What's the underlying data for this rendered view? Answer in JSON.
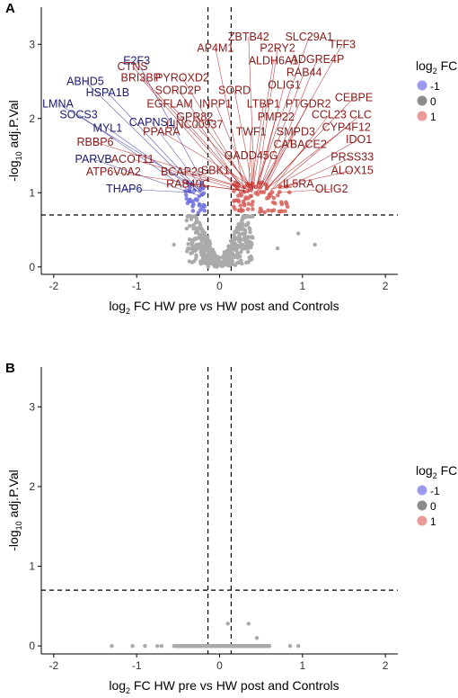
{
  "chart_data": [
    {
      "panel_label": "A",
      "type": "scatter",
      "xlabel_main": "log",
      "xlabel_sub": "2",
      "xlabel_rest": " FC HW pre vs HW post and Controls",
      "ylabel_pre": "-log",
      "ylabel_sub": "10",
      "ylabel_rest": " adj.P.Val",
      "xlim": [
        -2.15,
        2.15
      ],
      "ylim": [
        -0.1,
        3.5
      ],
      "x_ticks": [
        -2,
        -1,
        0,
        1,
        2
      ],
      "x_tick_labels": [
        "-2",
        "-1",
        "0",
        "1",
        "2"
      ],
      "y_ticks": [
        0,
        1,
        2,
        3
      ],
      "y_tick_labels": [
        "0",
        "1",
        "2",
        "3"
      ],
      "vlines": [
        -0.14,
        0.14
      ],
      "hline": 0.7,
      "legend": {
        "title_main": "log",
        "title_sub": "2",
        "title_rest": " FC",
        "items": [
          {
            "label": "-1",
            "color": "#8f8ff0"
          },
          {
            "label": "0",
            "color": "#808080"
          },
          {
            "label": "1",
            "color": "#e8908c"
          }
        ]
      },
      "colors": {
        "down": "#2d2d9a",
        "up": "#b01818",
        "down_label": "#1a1a6e",
        "up_label": "#8b1a1a",
        "neutral": "#aaaaaa",
        "down_point": "#6e6ee0",
        "up_point": "#d8605a"
      },
      "labels_down": [
        {
          "text": "E2F3",
          "lx": -1.0,
          "ly": 2.78,
          "px": -0.18,
          "py": 1.1
        },
        {
          "text": "ABHD5",
          "lx": -1.62,
          "ly": 2.5,
          "px": -0.2,
          "py": 0.95
        },
        {
          "text": "HSPA1B",
          "lx": -1.35,
          "ly": 2.35,
          "px": -0.22,
          "py": 1.0
        },
        {
          "text": "LMNA",
          "lx": -1.95,
          "ly": 2.2,
          "px": -0.25,
          "py": 1.05
        },
        {
          "text": "SOCS3",
          "lx": -1.7,
          "ly": 2.05,
          "px": -0.3,
          "py": 0.98
        },
        {
          "text": "MYL1",
          "lx": -1.35,
          "ly": 1.87,
          "px": -0.27,
          "py": 1.02
        },
        {
          "text": "CAPNS1",
          "lx": -0.82,
          "ly": 1.95,
          "px": -0.2,
          "py": 1.05
        },
        {
          "text": "PARVB",
          "lx": -1.52,
          "ly": 1.45,
          "px": -0.22,
          "py": 0.95
        },
        {
          "text": "THAP6",
          "lx": -1.15,
          "ly": 1.05,
          "px": -0.3,
          "py": 1.0
        }
      ],
      "labels_up": [
        {
          "text": "CTNS",
          "lx": -1.05,
          "ly": 2.7,
          "px": 0.3,
          "py": 1.05
        },
        {
          "text": "BRI3BP",
          "lx": -0.95,
          "ly": 2.55,
          "px": 0.25,
          "py": 1.0
        },
        {
          "text": "PYROXD2",
          "lx": -0.45,
          "ly": 2.55,
          "px": 0.35,
          "py": 1.05
        },
        {
          "text": "SORD2P",
          "lx": -0.5,
          "ly": 2.38,
          "px": 0.35,
          "py": 1.1
        },
        {
          "text": "SORD",
          "lx": 0.18,
          "ly": 2.38,
          "px": 0.4,
          "py": 1.05
        },
        {
          "text": "EGFLAM",
          "lx": -0.6,
          "ly": 2.2,
          "px": 0.3,
          "py": 1.08
        },
        {
          "text": "INPP1",
          "lx": -0.05,
          "ly": 2.2,
          "px": 0.38,
          "py": 1.02
        },
        {
          "text": "GPR82",
          "lx": -0.3,
          "ly": 2.02,
          "px": 0.3,
          "py": 1.0
        },
        {
          "text": "PPARA",
          "lx": -0.7,
          "ly": 1.82,
          "px": 0.45,
          "py": 1.05
        },
        {
          "text": "RBBP6",
          "lx": -1.5,
          "ly": 1.68,
          "px": 0.25,
          "py": 1.08
        },
        {
          "text": "ACOT11",
          "lx": -1.05,
          "ly": 1.45,
          "px": 0.35,
          "py": 1.0
        },
        {
          "text": "ATP6V0A2",
          "lx": -1.28,
          "ly": 1.28,
          "px": 0.3,
          "py": 1.02
        },
        {
          "text": "BCAP29",
          "lx": -0.45,
          "ly": 1.28,
          "px": 0.33,
          "py": 1.05
        },
        {
          "text": "SBK1",
          "lx": -0.05,
          "ly": 1.3,
          "px": 0.4,
          "py": 1.0
        },
        {
          "text": "RAB40C",
          "lx": -0.38,
          "ly": 1.12,
          "px": 0.3,
          "py": 1.03
        },
        {
          "text": "LINC00937",
          "lx": -0.3,
          "ly": 1.92,
          "px": 0.4,
          "py": 1.08
        },
        {
          "text": "ZBTB42",
          "lx": 0.35,
          "ly": 3.1,
          "px": 0.42,
          "py": 1.05
        },
        {
          "text": "SLC29A1",
          "lx": 1.08,
          "ly": 3.1,
          "px": 0.45,
          "py": 1.1
        },
        {
          "text": "TFF3",
          "lx": 1.48,
          "ly": 3.0,
          "px": 0.5,
          "py": 1.05
        },
        {
          "text": "AP4M1",
          "lx": -0.05,
          "ly": 2.95,
          "px": 0.3,
          "py": 1.0
        },
        {
          "text": "P2RY2",
          "lx": 0.7,
          "ly": 2.95,
          "px": 0.45,
          "py": 1.05
        },
        {
          "text": "ADGRE4P",
          "lx": 1.18,
          "ly": 2.8,
          "px": 0.55,
          "py": 1.08
        },
        {
          "text": "ALDH6A1",
          "lx": 0.65,
          "ly": 2.78,
          "px": 0.4,
          "py": 1.03
        },
        {
          "text": "RAB44",
          "lx": 1.02,
          "ly": 2.62,
          "px": 0.5,
          "py": 1.1
        },
        {
          "text": "OLIG1",
          "lx": 0.78,
          "ly": 2.45,
          "px": 0.45,
          "py": 1.0
        },
        {
          "text": "LTBP1",
          "lx": 0.53,
          "ly": 2.2,
          "px": 0.38,
          "py": 1.05
        },
        {
          "text": "PTGDR2",
          "lx": 1.07,
          "ly": 2.2,
          "px": 0.55,
          "py": 1.05
        },
        {
          "text": "CEBPE",
          "lx": 1.62,
          "ly": 2.28,
          "px": 0.6,
          "py": 1.1
        },
        {
          "text": "PMP22",
          "lx": 0.68,
          "ly": 2.02,
          "px": 0.45,
          "py": 1.08
        },
        {
          "text": "CCL23",
          "lx": 1.32,
          "ly": 2.05,
          "px": 0.6,
          "py": 1.0
        },
        {
          "text": "CLC",
          "lx": 1.7,
          "ly": 2.05,
          "px": 0.65,
          "py": 1.05
        },
        {
          "text": "CYP4F12",
          "lx": 1.53,
          "ly": 1.88,
          "px": 0.6,
          "py": 1.08
        },
        {
          "text": "TWF1",
          "lx": 0.38,
          "ly": 1.82,
          "px": 0.35,
          "py": 1.02
        },
        {
          "text": "SMPD3",
          "lx": 0.92,
          "ly": 1.82,
          "px": 0.5,
          "py": 1.05
        },
        {
          "text": "IDO1",
          "lx": 1.68,
          "ly": 1.72,
          "px": 0.7,
          "py": 1.1
        },
        {
          "text": "CAT",
          "lx": 0.78,
          "ly": 1.65,
          "px": 0.45,
          "py": 1.0
        },
        {
          "text": "BACE2",
          "lx": 1.07,
          "ly": 1.65,
          "px": 0.55,
          "py": 1.03
        },
        {
          "text": "GADD45G",
          "lx": 0.38,
          "ly": 1.5,
          "px": 0.4,
          "py": 1.05
        },
        {
          "text": "PRSS33",
          "lx": 1.6,
          "ly": 1.48,
          "px": 0.75,
          "py": 1.05
        },
        {
          "text": "ALOX15",
          "lx": 1.6,
          "ly": 1.3,
          "px": 0.8,
          "py": 1.1
        },
        {
          "text": "IL5RA",
          "lx": 0.95,
          "ly": 1.12,
          "px": 0.62,
          "py": 1.05
        },
        {
          "text": "OLIG2",
          "lx": 1.35,
          "ly": 1.05,
          "px": 0.7,
          "py": 1.0
        }
      ]
    },
    {
      "panel_label": "B",
      "type": "scatter",
      "xlabel_main": "log",
      "xlabel_sub": "2",
      "xlabel_rest": " FC HW pre vs HW post and Controls",
      "ylabel_pre": "-log",
      "ylabel_sub": "10",
      "ylabel_rest": " adj.P.Val",
      "xlim": [
        -2.15,
        2.15
      ],
      "ylim": [
        -0.1,
        3.5
      ],
      "x_ticks": [
        -2,
        -1,
        0,
        1,
        2
      ],
      "x_tick_labels": [
        "-2",
        "-1",
        "0",
        "1",
        "2"
      ],
      "y_ticks": [
        0,
        1,
        2,
        3
      ],
      "y_tick_labels": [
        "0",
        "1",
        "2",
        "3"
      ],
      "vlines": [
        -0.14,
        0.14
      ],
      "hline": 0.7,
      "legend": {
        "title_main": "log",
        "title_sub": "2",
        "title_rest": " FC",
        "items": [
          {
            "label": "-1",
            "color": "#8f8ff0"
          },
          {
            "label": "0",
            "color": "#808080"
          },
          {
            "label": "1",
            "color": "#e8908c"
          }
        ]
      },
      "points": [
        [
          -1.3,
          0.0
        ],
        [
          -1.05,
          0.0
        ],
        [
          -0.9,
          0.0
        ],
        [
          -0.75,
          0.0
        ],
        [
          -0.7,
          0.0
        ],
        [
          0.1,
          0.28
        ],
        [
          0.35,
          0.28
        ],
        [
          0.45,
          0.1
        ],
        [
          0.85,
          0.0
        ],
        [
          0.95,
          0.0
        ],
        [
          0.6,
          0.0
        ]
      ]
    }
  ]
}
